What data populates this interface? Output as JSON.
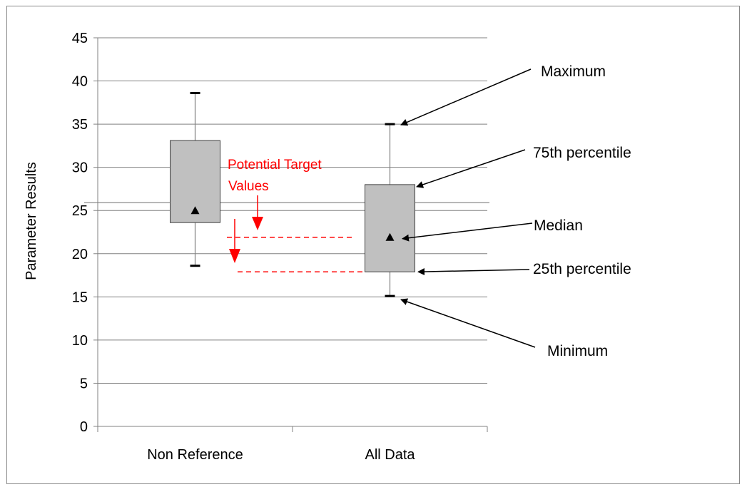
{
  "chart_data": {
    "type": "box",
    "ylabel": "Parameter Results",
    "xlabel": "",
    "ylim": [
      0,
      45
    ],
    "yticks": [
      0,
      5,
      10,
      15,
      20,
      25,
      30,
      35,
      40,
      45
    ],
    "categories": [
      "Non Reference",
      "All Data"
    ],
    "boxes": [
      {
        "category": "Non Reference",
        "min": 18.6,
        "q1": 23.6,
        "median": 25.0,
        "q3": 33.1,
        "max": 38.6
      },
      {
        "category": "All Data",
        "min": 15.1,
        "q1": 17.9,
        "median": 21.9,
        "q3": 28.0,
        "max": 35.0
      }
    ],
    "reference_line": 25.9,
    "target_lines": [
      21.9,
      17.9
    ],
    "target_label": [
      "Potential Target",
      "Values"
    ],
    "annotations": [
      {
        "label": "Maximum",
        "value": 35.0
      },
      {
        "label": "75th percentile",
        "value": 28.0
      },
      {
        "label": "Median",
        "value": 21.9
      },
      {
        "label": "25th percentile",
        "value": 17.9
      },
      {
        "label": "Minimum",
        "value": 15.1
      }
    ],
    "grid": true,
    "colors": {
      "box_fill": "#c0c0c0",
      "grid": "#808080",
      "target": "#ff0000",
      "text": "#000000"
    }
  }
}
